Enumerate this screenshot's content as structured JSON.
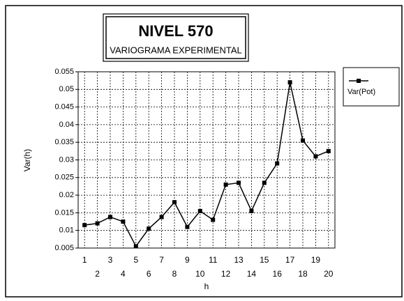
{
  "chart_data": {
    "type": "line",
    "title": "NIVEL 570",
    "subtitle": "VARIOGRAMA EXPERIMENTAL",
    "x_label": "h",
    "y_label": "Var(h)",
    "categories": [
      "1",
      "2",
      "3",
      "4",
      "5",
      "6",
      "7",
      "8",
      "9",
      "10",
      "11",
      "12",
      "13",
      "14",
      "15",
      "16",
      "17",
      "18",
      "19",
      "20"
    ],
    "series": [
      {
        "name": "Var(Pot)",
        "color": "#000000",
        "values": [
          0.0115,
          0.012,
          0.0138,
          0.0125,
          0.0055,
          0.0105,
          0.0138,
          0.018,
          0.011,
          0.0155,
          0.013,
          0.023,
          0.0235,
          0.0155,
          0.0235,
          0.029,
          0.052,
          0.0355,
          0.031,
          0.0325
        ]
      }
    ],
    "ylim": [
      0.005,
      0.055
    ],
    "yticks": [
      0.005,
      0.01,
      0.015,
      0.02,
      0.025,
      0.03,
      0.035,
      0.04,
      0.045,
      0.05,
      0.055
    ],
    "grid": true,
    "legend": "right"
  }
}
